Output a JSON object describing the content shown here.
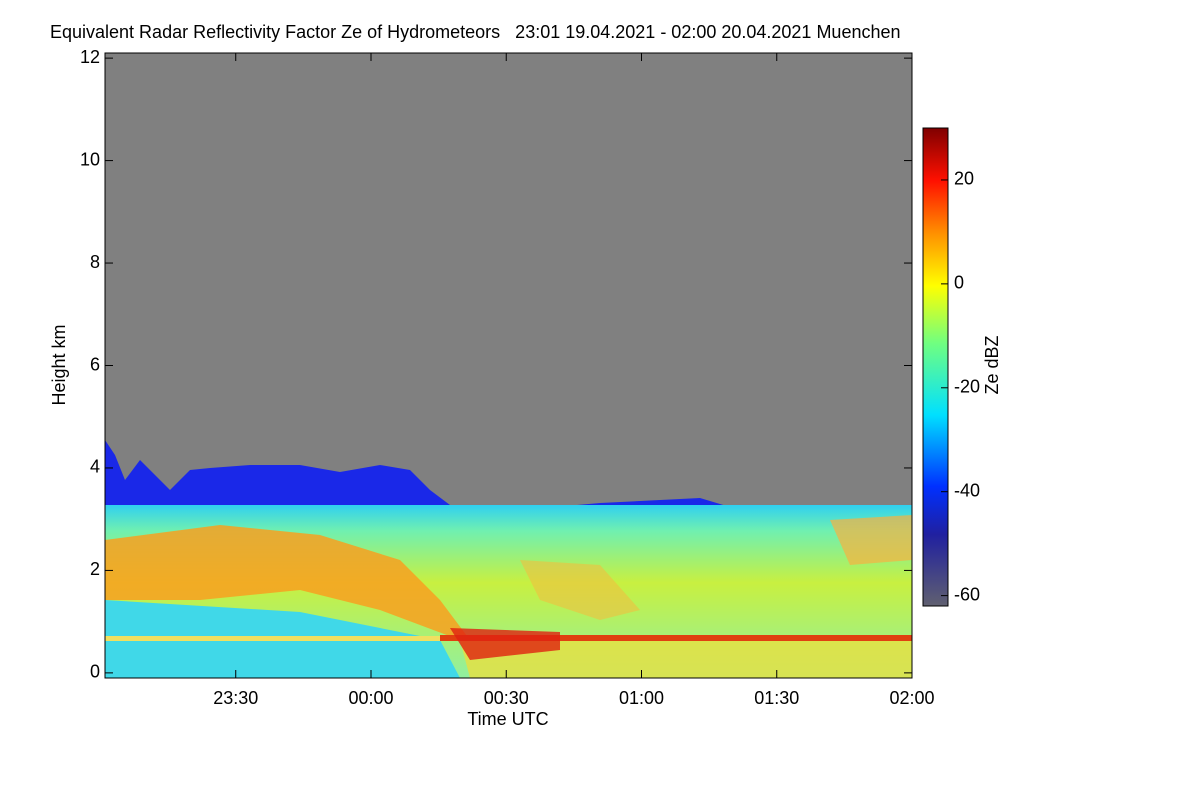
{
  "chart_data": {
    "type": "heatmap",
    "title": "Equivalent Radar Reflectivity Factor Ze of Hydrometeors   23:01 19.04.2021 - 02:00 20.04.2021 Muenchen",
    "x_label": "Time UTC",
    "y_label": "Height km",
    "colorbar_label": "Ze dBZ",
    "xlim": [
      23.0167,
      26
    ],
    "xticks": [
      {
        "value": 23.5,
        "label": "23:30"
      },
      {
        "value": 24,
        "label": "00:00"
      },
      {
        "value": 24.5,
        "label": "00:30"
      },
      {
        "value": 25,
        "label": "01:00"
      },
      {
        "value": 25.5,
        "label": "01:30"
      },
      {
        "value": 26,
        "label": "02:00"
      }
    ],
    "ylim": [
      -0.1,
      12.1
    ],
    "yticks": [
      0,
      2,
      4,
      6,
      8,
      10,
      12
    ],
    "clim": [
      -62,
      30
    ],
    "cticks": [
      -60,
      -40,
      -20,
      0,
      20
    ]
  }
}
